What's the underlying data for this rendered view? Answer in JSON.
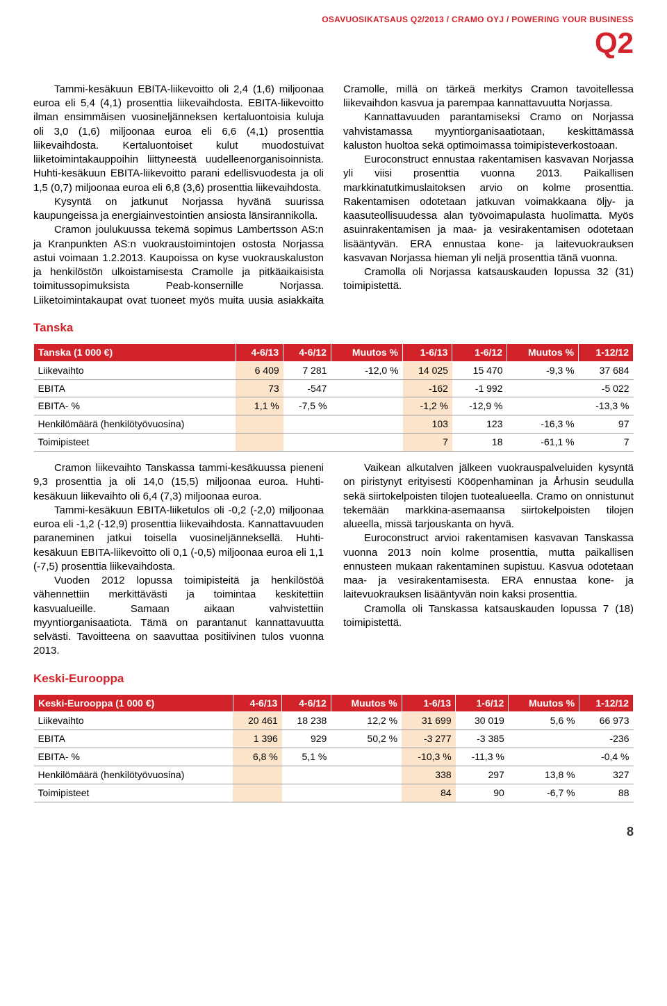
{
  "header": {
    "line": "OSAVUOSIKATSAUS Q2/2013 / CRAMO OYJ / POWERING YOUR BUSINESS",
    "q": "Q2"
  },
  "intro": {
    "p1": "Tammi-kesäkuun EBITA-liikevoitto oli 2,4 (1,6) miljoonaa euroa eli 5,4 (4,1) prosenttia liikevaihdosta. EBITA-liikevoitto ilman ensimmäisen vuosineljänneksen kertaluontoisia kuluja oli 3,0 (1,6) miljoonaa euroa eli 6,6 (4,1) prosenttia liikevaihdosta. Kertaluontoiset kulut muodostuivat liiketoimintakauppoihin liittyneestä uudelleenorganisoinnista. Huhti-kesäkuun EBITA-liikevoitto parani edellisvuodesta ja oli 1,5 (0,7) miljoonaa euroa eli 6,8 (3,6) prosenttia liikevaihdosta.",
    "p2": "Kysyntä on jatkunut Norjassa hyvänä suurissa kaupungeissa ja energiainvestointien ansiosta länsirannikolla.",
    "p3": "Cramon joulukuussa tekemä sopimus Lambertsson AS:n ja Kranpunkten AS:n vuokraustoimintojen ostosta Norjassa astui voimaan 1.2.2013. Kaupoissa on kyse vuokrauskaluston ja henkilöstön ulkoistamisesta Cramolle ja pitkäaikaisista toimitussopimuksista Peab-konsernille Norjassa. Liiketoimintakaupat ovat tuoneet myös muita uusia asiakkaita Cramolle, millä on tärkeä merkitys Cramon tavoitellessa liikevaihdon kasvua ja parempaa kannattavuutta Norjassa.",
    "p4": "Kannattavuuden parantamiseksi Cramo on Norjassa vahvistamassa myyntiorganisaatiotaan, keskittämässä kaluston huoltoa sekä optimoimassa toimipisteverkostoaan.",
    "p5": "Euroconstruct ennustaa rakentamisen kasvavan Norjassa yli viisi prosenttia vuonna 2013. Paikallisen markkinatutkimuslaitoksen arvio on kolme prosenttia. Rakentamisen odotetaan jatkuvan voimakkaana öljy- ja kaasuteollisuudessa alan työvoimapulasta huolimatta. Myös asuinrakentamisen ja maa- ja vesirakentamisen odotetaan lisääntyvän. ERA ennustaa kone- ja laitevuokrauksen kasvavan Norjassa hieman yli neljä prosenttia tänä vuonna.",
    "p6": "Cramolla oli Norjassa katsauskauden lopussa 32 (31) toimipistettä."
  },
  "tanska": {
    "title": "Tanska",
    "table": {
      "header": [
        "Tanska (1 000 €)",
        "4-6/13",
        "4-6/12",
        "Muutos %",
        "1-6/13",
        "1-6/12",
        "Muutos %",
        "1-12/12"
      ],
      "rows": [
        [
          "Liikevaihto",
          "6 409",
          "7 281",
          "-12,0 %",
          "14 025",
          "15 470",
          "-9,3 %",
          "37 684"
        ],
        [
          "EBITA",
          "73",
          "-547",
          "",
          "-162",
          "-1 992",
          "",
          "-5 022"
        ],
        [
          "EBITA- %",
          "1,1 %",
          "-7,5 %",
          "",
          "-1,2 %",
          "-12,9 %",
          "",
          "-13,3 %"
        ],
        [
          "Henkilömäärä (henkilötyövuosina)",
          "",
          "",
          "",
          "103",
          "123",
          "-16,3 %",
          "97"
        ],
        [
          "Toimipisteet",
          "",
          "",
          "",
          "7",
          "18",
          "-61,1 %",
          "7"
        ]
      ],
      "hl_cols": [
        1,
        4
      ]
    },
    "p1": "Cramon liikevaihto Tanskassa tammi-kesäkuussa pieneni 9,3 prosenttia ja oli 14,0 (15,5) miljoonaa euroa. Huhti-kesäkuun liikevaihto oli 6,4 (7,3) miljoonaa euroa.",
    "p2": "Tammi-kesäkuun EBITA-liiketulos oli -0,2 (-2,0) miljoonaa euroa eli -1,2 (-12,9) prosenttia liikevaihdosta. Kannattavuuden paraneminen jatkui toisella vuosineljänneksellä. Huhti-kesäkuun EBITA-liikevoitto oli 0,1 (-0,5) miljoonaa euroa eli 1,1 (-7,5) prosenttia liikevaihdosta.",
    "p3": "Vuoden 2012 lopussa toimipisteitä ja henkilöstöä vähennettiin merkittävästi ja toimintaa keskitettiin kasvualueille. Samaan aikaan vahvistettiin myyntiorganisaatiota. Tämä on parantanut kannattavuutta selvästi. Tavoitteena on saavuttaa positiivinen tulos vuonna 2013.",
    "p4": "Vaikean alkutalven jälkeen vuokrauspalveluiden kysyntä on piristynyt erityisesti Kööpenhaminan ja Århusin seudulla sekä siirtokelpoisten tilojen tuotealueella. Cramo on onnistunut tekemään markkina-asemaansa siirtokelpoisten tilojen alueella, missä tarjouskanta on hyvä.",
    "p5": "Euroconstruct arvioi rakentamisen kasvavan Tanskassa vuonna 2013 noin kolme prosenttia, mutta paikallisen ennusteen mukaan rakentaminen supistuu. Kasvua odotetaan maa- ja vesirakentamisesta. ERA ennustaa kone- ja laitevuokrauksen lisääntyvän noin kaksi prosenttia.",
    "p6": "Cramolla oli Tanskassa katsauskauden lopussa 7 (18) toimipistettä."
  },
  "keski": {
    "title": "Keski-Eurooppa",
    "table": {
      "header": [
        "Keski-Eurooppa (1 000 €)",
        "4-6/13",
        "4-6/12",
        "Muutos %",
        "1-6/13",
        "1-6/12",
        "Muutos %",
        "1-12/12"
      ],
      "rows": [
        [
          "Liikevaihto",
          "20 461",
          "18 238",
          "12,2 %",
          "31 699",
          "30 019",
          "5,6 %",
          "66 973"
        ],
        [
          "EBITA",
          "1 396",
          "929",
          "50,2 %",
          "-3 277",
          "-3 385",
          "",
          "-236"
        ],
        [
          "EBITA- %",
          "6,8 %",
          "5,1 %",
          "",
          "-10,3 %",
          "-11,3 %",
          "",
          "-0,4 %"
        ],
        [
          "Henkilömäärä (henkilötyövuosina)",
          "",
          "",
          "",
          "338",
          "297",
          "13,8 %",
          "327"
        ],
        [
          "Toimipisteet",
          "",
          "",
          "",
          "84",
          "90",
          "-6,7 %",
          "88"
        ]
      ],
      "hl_cols": [
        1,
        4
      ]
    }
  },
  "page": "8",
  "colors": {
    "brand_red": "#d2232a",
    "highlight_bg": "#fbe4c9",
    "row_border": "#999"
  }
}
